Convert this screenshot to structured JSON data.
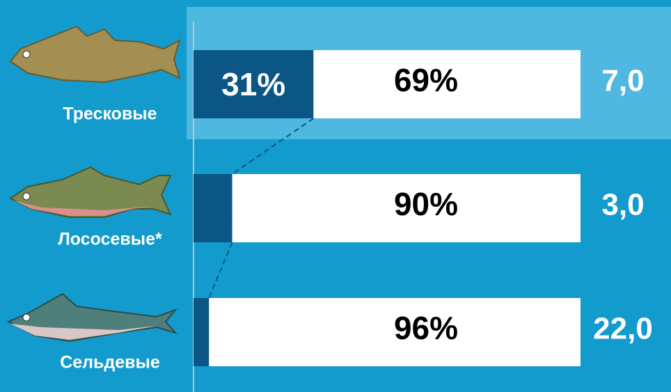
{
  "chart_data": {
    "type": "bar",
    "stacked": true,
    "orientation": "horizontal",
    "categories": [
      "Тресковые",
      "Лососевые*",
      "Сельдевые"
    ],
    "series": [
      {
        "color": "#0b5684",
        "values": [
          31,
          10,
          4
        ],
        "value_labels": [
          "31%",
          "10%",
          "4%"
        ]
      },
      {
        "color": "#ffffff",
        "values": [
          69,
          90,
          96
        ],
        "value_labels": [
          "69%",
          "90%",
          "96%"
        ]
      }
    ],
    "side_values": {
      "values": [
        7.0,
        3.0,
        22.0
      ],
      "value_labels": [
        "7,0",
        "3,0",
        "22,0"
      ]
    },
    "xlim": [
      0,
      100
    ]
  }
}
